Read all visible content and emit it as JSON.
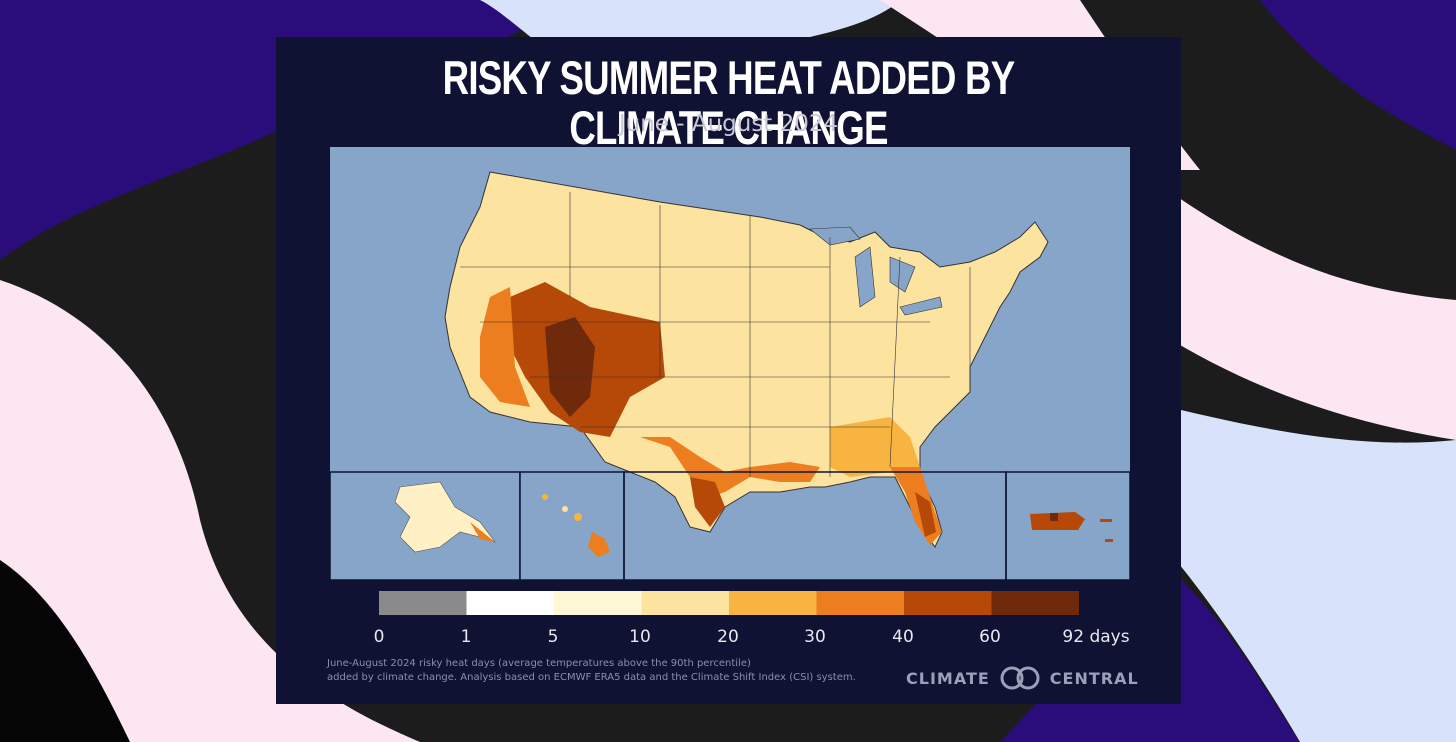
{
  "title": "RISKY SUMMER HEAT ADDED BY CLIMATE CHANGE",
  "subtitle": "June - August 2024",
  "legend": {
    "bins": [
      {
        "from": "0",
        "to": "1",
        "color": "#8a8a8a"
      },
      {
        "from": "1",
        "to": "5",
        "color": "#ffffff"
      },
      {
        "from": "5",
        "to": "10",
        "color": "#fff8d6"
      },
      {
        "from": "10",
        "to": "20",
        "color": "#fde3a0"
      },
      {
        "from": "20",
        "to": "30",
        "color": "#f8b440"
      },
      {
        "from": "30",
        "to": "40",
        "color": "#ec7e1f"
      },
      {
        "from": "40",
        "to": "60",
        "color": "#b64808"
      },
      {
        "from": "60",
        "to": "92",
        "color": "#6e2a0a"
      }
    ],
    "labels": [
      "0",
      "1",
      "5",
      "10",
      "20",
      "30",
      "40",
      "60",
      "92 days"
    ]
  },
  "source_line1": "June-August 2024 risky heat days (average temperatures above the 90th percentile)",
  "source_line2": "added by climate change. Analysis based on ECMWF ERA5 data and the Climate Shift Index (CSI) system.",
  "logo": {
    "left": "CLIMATE",
    "right": "CENTRAL"
  },
  "colors": {
    "card_bg": "#0f1233",
    "ocean": "#87a5c9",
    "land_base": "#fde3a0"
  },
  "map_regions": [
    {
      "name": "Contiguous United States",
      "dominant_bin": "10-20"
    },
    {
      "name": "Desert Southwest",
      "dominant_bin": "40-60"
    },
    {
      "name": "Gulf Coast / Florida",
      "dominant_bin": "30-40"
    },
    {
      "name": "Alaska",
      "dominant_bin": "5-10"
    },
    {
      "name": "Hawaii",
      "dominant_bin": "30-40"
    },
    {
      "name": "Puerto Rico",
      "dominant_bin": "40-60"
    }
  ]
}
